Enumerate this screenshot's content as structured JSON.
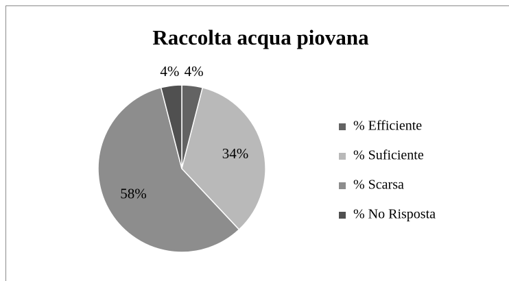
{
  "chart_data": {
    "type": "pie",
    "title": "Raccolta acqua piovana",
    "categories": [
      "% Efficiente",
      "% Suficiente",
      "% Scarsa",
      "% No Risposta"
    ],
    "values": [
      4,
      34,
      58,
      4
    ],
    "value_labels": [
      "4%",
      "34%",
      "58%",
      "4%"
    ],
    "colors": [
      "#636363",
      "#b9b9b9",
      "#8d8d8d",
      "#505050"
    ],
    "legend": "right"
  }
}
